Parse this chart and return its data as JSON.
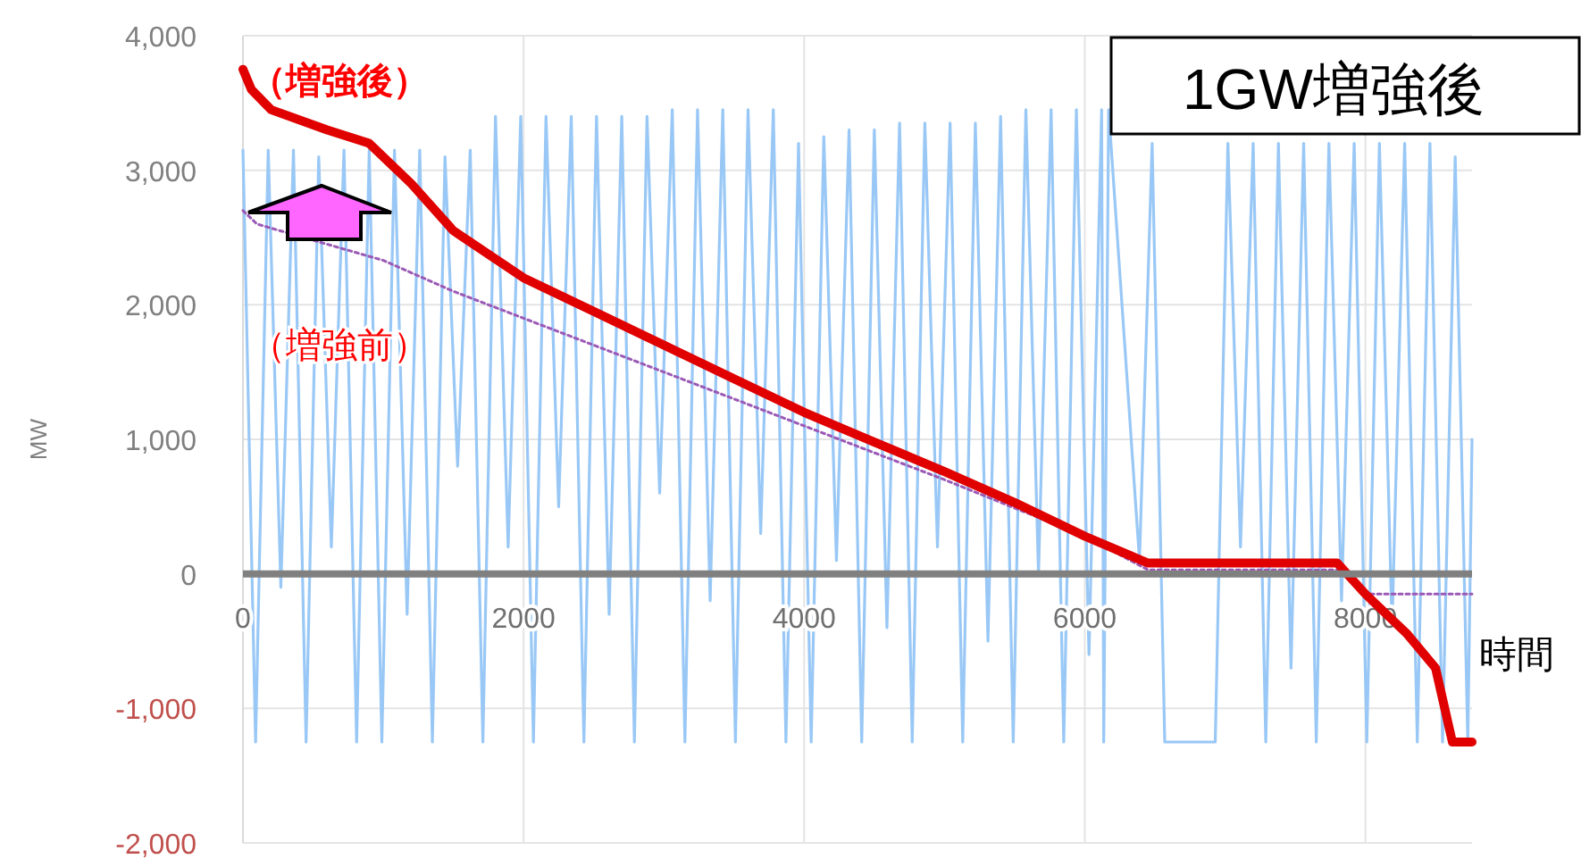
{
  "chart_data": {
    "type": "line",
    "xlabel": "時間",
    "ylabel": "MW",
    "xlim": [
      0,
      8760
    ],
    "ylim": [
      -2000,
      4000
    ],
    "xticks": [
      0,
      2000,
      4000,
      6000,
      8000
    ],
    "yticks": [
      {
        "value": -2000,
        "label": "-2,000"
      },
      {
        "value": -1000,
        "label": "-1,000"
      },
      0,
      {
        "value": 1000,
        "label": "1,000"
      },
      {
        "value": 2000,
        "label": "2,000"
      },
      {
        "value": 3000,
        "label": "3,000"
      },
      {
        "value": 4000,
        "label": "4,000"
      }
    ],
    "grid": true,
    "annotations": [
      "（増強後）",
      "（増強前）",
      "1GW増強後"
    ],
    "series": [
      {
        "color": "#99c8f6",
        "x": [
          0,
          90,
          180,
          270,
          360,
          450,
          540,
          630,
          720,
          810,
          900,
          990,
          1080,
          1170,
          1260,
          1350,
          1440,
          1530,
          1620,
          1710,
          1800,
          1890,
          1980,
          2070,
          2160,
          2250,
          2340,
          2430,
          2520,
          2610,
          2700,
          2790,
          2880,
          2970,
          3060,
          3150,
          3240,
          3330,
          3420,
          3510,
          3600,
          3690,
          3780,
          3870,
          3960,
          4050,
          4140,
          4230,
          4320,
          4410,
          4500,
          4590,
          4680,
          4770,
          4860,
          4950,
          5040,
          5130,
          5220,
          5310,
          5400,
          5490,
          5580,
          5670,
          5760,
          5850,
          5940,
          6030,
          6120,
          6135,
          6170,
          6390,
          6480,
          6570,
          6930,
          7020,
          7110,
          7200,
          7290,
          7380,
          7470,
          7560,
          7650,
          7740,
          7830,
          7920,
          8010,
          8100,
          8190,
          8280,
          8370,
          8460,
          8550,
          8640,
          8730,
          8760
        ],
        "values": [
          3150,
          -1250,
          3150,
          -100,
          3150,
          -1250,
          3100,
          200,
          3150,
          -1250,
          3150,
          -1250,
          3150,
          -300,
          3150,
          -1250,
          3100,
          800,
          3150,
          -1250,
          3400,
          200,
          3400,
          -1250,
          3400,
          500,
          3400,
          -1250,
          3400,
          -300,
          3400,
          -1250,
          3400,
          600,
          3450,
          -1250,
          3450,
          -200,
          3450,
          -1250,
          3450,
          300,
          3450,
          -1250,
          3200,
          -1250,
          3250,
          100,
          3300,
          -1250,
          3300,
          -400,
          3350,
          -1250,
          3350,
          200,
          3350,
          -1250,
          3350,
          -500,
          3400,
          -1250,
          3450,
          0,
          3450,
          -1250,
          3450,
          -600,
          3450,
          -1250,
          3450,
          100,
          3200,
          -1250,
          -1250,
          3200,
          200,
          3200,
          -1250,
          3200,
          -700,
          3200,
          -1250,
          3200,
          -200,
          3200,
          -1250,
          3200,
          -400,
          3200,
          -1250,
          3200,
          -1250,
          3100,
          -1250,
          1000
        ]
      },
      {
        "color": "#9b59b6",
        "line_style": "dotted",
        "x": [
          0,
          100,
          1000,
          1500,
          2000,
          3000,
          4000,
          5000,
          6000,
          6450,
          7800,
          8000,
          8760
        ],
        "values": [
          2700,
          2600,
          2330,
          2100,
          1900,
          1500,
          1100,
          700,
          280,
          30,
          30,
          -150,
          -150
        ]
      },
      {
        "color": "#e00000",
        "x": [
          0,
          60,
          200,
          600,
          900,
          1200,
          1500,
          2000,
          2500,
          3000,
          3500,
          4000,
          4500,
          5000,
          5500,
          6000,
          6450,
          7000,
          7800,
          8000,
          8300,
          8500,
          8620,
          8760
        ],
        "values": [
          3750,
          3600,
          3450,
          3300,
          3200,
          2900,
          2550,
          2200,
          1950,
          1700,
          1450,
          1200,
          980,
          760,
          530,
          280,
          80,
          80,
          80,
          -150,
          -450,
          -700,
          -1250,
          -1250
        ]
      }
    ]
  }
}
